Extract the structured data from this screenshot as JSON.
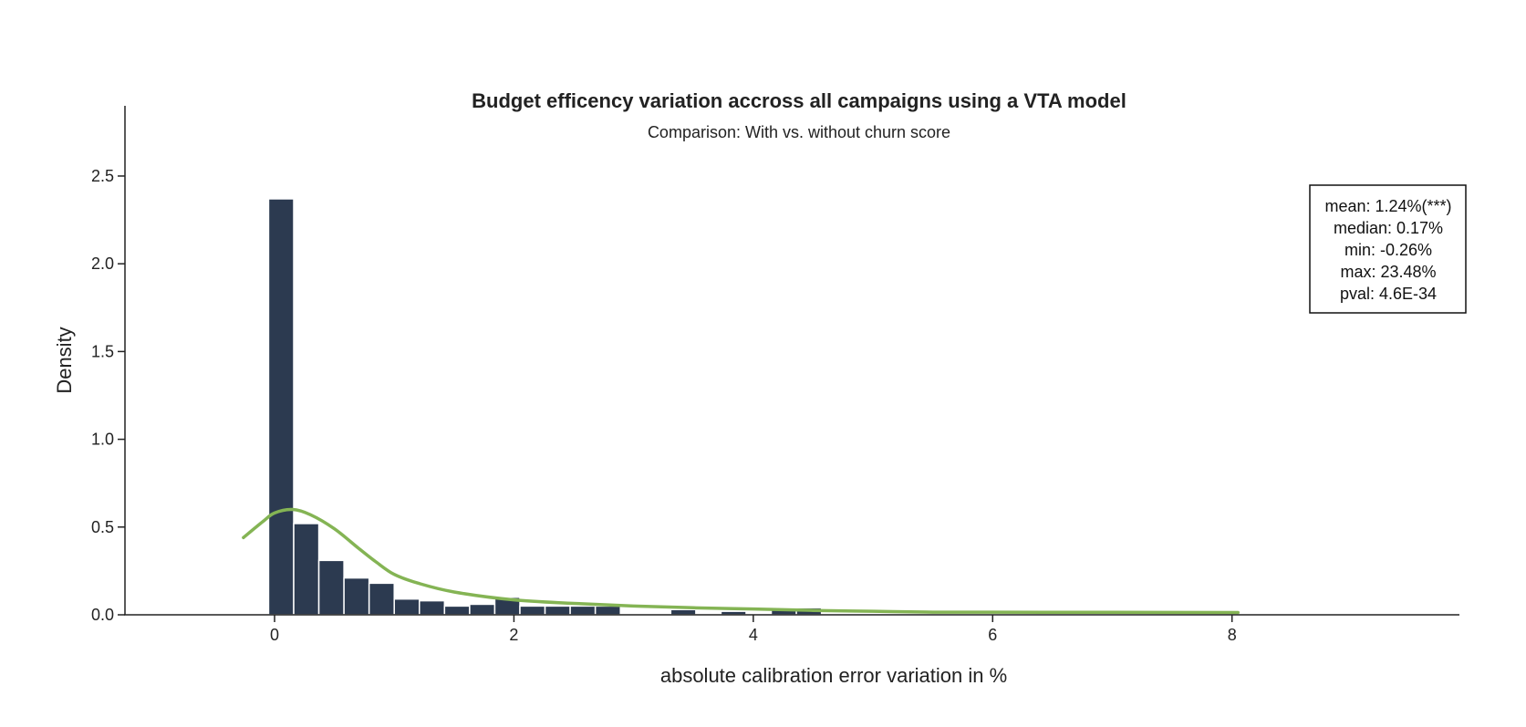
{
  "chart_data": {
    "type": "bar",
    "title": "Budget efficency variation accross all campaigns using a VTA model",
    "subtitle": "Comparison: With vs. without churn score",
    "xlabel": "absolute calibration error variation in %",
    "ylabel": "Density",
    "xlim": [
      -1.25,
      9.9
    ],
    "ylim": [
      0,
      2.9
    ],
    "x_ticks": [
      0,
      2,
      4,
      6,
      8
    ],
    "x_tick_labels": [
      "0",
      "2",
      "4",
      "6",
      "8"
    ],
    "y_ticks": [
      0,
      0.5,
      1.0,
      1.5,
      2.0,
      2.5
    ],
    "y_tick_labels": [
      "0.0",
      "0.5",
      "1.0",
      "1.5",
      "2.0",
      "2.5"
    ],
    "grid": false,
    "bin_width": 0.21,
    "histogram": {
      "name": "Density histogram",
      "bin_starts": [
        -0.05,
        0.16,
        0.37,
        0.58,
        0.79,
        1.0,
        1.21,
        1.42,
        1.63,
        1.84,
        2.05,
        2.26,
        2.47,
        2.68,
        3.31,
        3.73,
        4.15,
        4.36
      ],
      "values": [
        2.37,
        0.52,
        0.31,
        0.21,
        0.18,
        0.09,
        0.08,
        0.05,
        0.06,
        0.1,
        0.05,
        0.05,
        0.05,
        0.05,
        0.03,
        0.02,
        0.03,
        0.04
      ]
    },
    "kde": {
      "name": "KDE",
      "color": "#84b454",
      "x": [
        -0.26,
        -0.1,
        0.0,
        0.15,
        0.3,
        0.5,
        0.7,
        0.85,
        1.0,
        1.2,
        1.5,
        2.0,
        2.5,
        3.0,
        3.5,
        4.0,
        4.5,
        5.0,
        5.5,
        6.0,
        7.0,
        8.05
      ],
      "y": [
        0.44,
        0.53,
        0.58,
        0.6,
        0.57,
        0.49,
        0.38,
        0.3,
        0.23,
        0.18,
        0.13,
        0.085,
        0.065,
        0.05,
        0.04,
        0.033,
        0.025,
        0.02,
        0.015,
        0.015,
        0.014,
        0.013
      ]
    },
    "bar_color": "#2c3a50",
    "stats_box": {
      "position": "top-right",
      "lines": [
        "mean: 1.24%(***)",
        "median: 0.17%",
        "min: -0.26%",
        "max: 23.48%",
        "pval: 4.6E-34"
      ]
    }
  }
}
